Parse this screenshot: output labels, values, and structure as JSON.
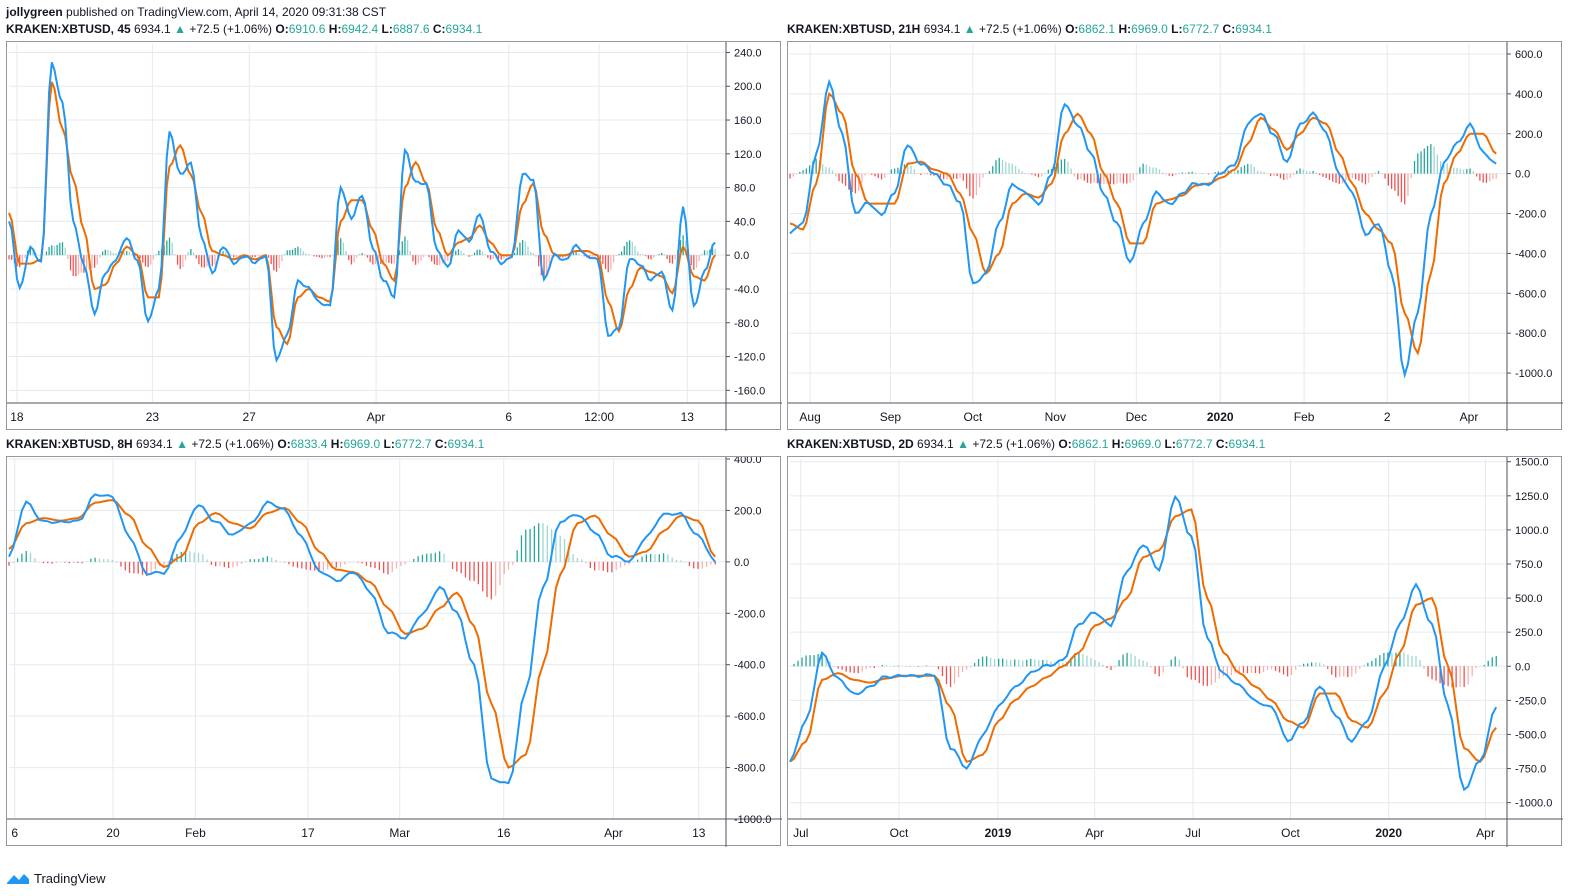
{
  "header": {
    "author": "jollygreen",
    "published_text": "published on TradingView.com, April 14, 2020 09:31:38 CST"
  },
  "colors": {
    "macd": "#2196f3",
    "signal": "#ef6c00",
    "hist_up": "#26a69a",
    "hist_down": "#ef5350",
    "grid": "#e6e9ef",
    "axis_text": "#131722"
  },
  "footer": {
    "brand": "TradingView",
    "icon": "tradingview-logo-icon"
  },
  "panels": [
    {
      "symbol": "KRAKEN:XBTUSD, 45",
      "price": "6934.1",
      "change": "+72.5 (+1.06%)",
      "o": "6910.6",
      "h": "6942.4",
      "l": "6887.6",
      "c": "6934.1"
    },
    {
      "symbol": "KRAKEN:XBTUSD, 21H",
      "price": "6934.1",
      "change": "+72.5 (+1.06%)",
      "o": "6862.1",
      "h": "6969.0",
      "l": "6772.7",
      "c": "6934.1"
    },
    {
      "symbol": "KRAKEN:XBTUSD, 8H",
      "price": "6934.1",
      "change": "+72.5 (+1.06%)",
      "o": "6833.4",
      "h": "6969.0",
      "l": "6772.7",
      "c": "6934.1"
    },
    {
      "symbol": "KRAKEN:XBTUSD, 2D",
      "price": "6934.1",
      "change": "+72.5 (+1.06%)",
      "o": "6862.1",
      "h": "6969.0",
      "l": "6772.7",
      "c": "6934.1"
    }
  ],
  "chart_data": [
    {
      "type": "line",
      "ylim": [
        -175,
        250
      ],
      "yticks": [
        "240.0",
        "200.0",
        "160.0",
        "120.0",
        "80.0",
        "40.0",
        "0.0",
        "-40.0",
        "-80.0",
        "-120.0",
        "-160.0"
      ],
      "ytick_values": [
        240,
        200,
        160,
        120,
        80,
        40,
        0,
        -40,
        -80,
        -120,
        -160
      ],
      "xticks": [
        "18",
        "23",
        "27",
        "Apr",
        "6",
        "12:00",
        "13"
      ],
      "xtick_positions": [
        0.011,
        0.2,
        0.335,
        0.512,
        0.697,
        0.823,
        0.946
      ],
      "series": [
        {
          "role": "macd",
          "values": [
            40,
            -40,
            10,
            -10,
            228,
            180,
            40,
            -10,
            -70,
            -20,
            -5,
            20,
            -5,
            -80,
            -40,
            145,
            95,
            110,
            20,
            -20,
            10,
            -10,
            0,
            -10,
            0,
            -125,
            -95,
            -30,
            -40,
            -55,
            -60,
            80,
            45,
            70,
            10,
            -30,
            -50,
            125,
            85,
            85,
            5,
            -15,
            30,
            15,
            50,
            5,
            -10,
            0,
            95,
            90,
            -30,
            0,
            -5,
            10,
            0,
            -5,
            -95,
            -85,
            -5,
            -10,
            -30,
            -20,
            -65,
            55,
            -60,
            -20,
            15
          ]
        },
        {
          "role": "signal",
          "values": [
            50,
            -10,
            -10,
            -5,
            205,
            150,
            90,
            30,
            -40,
            -35,
            -10,
            10,
            0,
            -50,
            -50,
            105,
            130,
            95,
            50,
            5,
            0,
            -5,
            0,
            -5,
            0,
            -85,
            -105,
            -50,
            -40,
            -50,
            -55,
            40,
            65,
            65,
            30,
            -10,
            -30,
            80,
            110,
            85,
            30,
            0,
            15,
            20,
            35,
            15,
            0,
            0,
            60,
            85,
            25,
            0,
            0,
            5,
            5,
            0,
            -55,
            -90,
            -40,
            -15,
            -20,
            -25,
            -45,
            10,
            -25,
            -30,
            0
          ]
        }
      ]
    },
    {
      "type": "line",
      "ylim": [
        -1150,
        650
      ],
      "yticks": [
        "600.0",
        "400.0",
        "200.0",
        "0.0",
        "-200.0",
        "-400.0",
        "-600.0",
        "-800.0",
        "-1000.0"
      ],
      "ytick_values": [
        600,
        400,
        200,
        0,
        -200,
        -400,
        -600,
        -800,
        -1000
      ],
      "xticks": [
        "Aug",
        "Sep",
        "Oct",
        "Nov",
        "Dec",
        "2020",
        "Feb",
        "2",
        "Apr"
      ],
      "xtick_positions": [
        0.028,
        0.14,
        0.255,
        0.37,
        0.483,
        0.6,
        0.717,
        0.833,
        0.947
      ],
      "series": [
        {
          "role": "macd",
          "values": [
            -300,
            -250,
            100,
            450,
            200,
            -200,
            -150,
            -200,
            -100,
            150,
            50,
            0,
            -50,
            -150,
            -550,
            -500,
            -250,
            -50,
            -100,
            -150,
            0,
            350,
            250,
            100,
            -100,
            -250,
            -450,
            -250,
            -100,
            -150,
            -100,
            -50,
            -50,
            0,
            50,
            250,
            300,
            200,
            50,
            250,
            300,
            200,
            0,
            -100,
            -300,
            -250,
            -500,
            -1000,
            -700,
            -200,
            50,
            150,
            250,
            100,
            50
          ]
        },
        {
          "role": "signal",
          "values": [
            -250,
            -280,
            -50,
            400,
            300,
            0,
            -150,
            -150,
            -150,
            50,
            60,
            20,
            0,
            -100,
            -300,
            -500,
            -400,
            -150,
            -100,
            -120,
            -50,
            200,
            300,
            200,
            0,
            -150,
            -350,
            -350,
            -150,
            -130,
            -110,
            -60,
            -50,
            -20,
            20,
            150,
            280,
            220,
            120,
            200,
            280,
            250,
            100,
            -50,
            -200,
            -280,
            -350,
            -700,
            -900,
            -500,
            -50,
            100,
            200,
            200,
            100
          ]
        }
      ]
    },
    {
      "type": "line",
      "ylim": [
        -1000,
        400
      ],
      "yticks": [
        "400.0",
        "200.0",
        "0.0",
        "-200.0",
        "-400.0",
        "-600.0",
        "-800.0",
        "-1000.0"
      ],
      "ytick_values": [
        400,
        200,
        0,
        -200,
        -400,
        -600,
        -800,
        -1000
      ],
      "xticks": [
        "6",
        "20",
        "Feb",
        "17",
        "Mar",
        "16",
        "Apr",
        "13"
      ],
      "xtick_positions": [
        0.008,
        0.145,
        0.26,
        0.417,
        0.545,
        0.69,
        0.843,
        0.962
      ],
      "series": [
        {
          "role": "macd",
          "values": [
            20,
            230,
            160,
            150,
            160,
            260,
            250,
            100,
            -50,
            -40,
            100,
            220,
            160,
            100,
            150,
            230,
            200,
            100,
            -40,
            -70,
            -40,
            -120,
            -270,
            -300,
            -200,
            -100,
            -200,
            -400,
            -850,
            -860,
            -500,
            -100,
            160,
            180,
            120,
            20,
            0,
            100,
            180,
            190,
            100,
            0
          ]
        },
        {
          "role": "signal",
          "values": [
            50,
            150,
            170,
            160,
            170,
            230,
            240,
            180,
            60,
            -20,
            20,
            150,
            190,
            150,
            130,
            190,
            210,
            150,
            40,
            -30,
            -40,
            -80,
            -180,
            -280,
            -260,
            -180,
            -120,
            -250,
            -550,
            -800,
            -750,
            -400,
            -50,
            150,
            180,
            100,
            20,
            40,
            120,
            180,
            160,
            20
          ]
        }
      ]
    },
    {
      "type": "line",
      "ylim": [
        -1120,
        1520
      ],
      "yticks": [
        "1500.0",
        "1250.0",
        "1000.0",
        "750.0",
        "500.0",
        "250.0",
        "0.0",
        "-250.0",
        "-500.0",
        "-750.0",
        "-1000.0"
      ],
      "ytick_values": [
        1500,
        1250,
        1000,
        750,
        500,
        250,
        0,
        -250,
        -500,
        -750,
        -1000
      ],
      "xticks": [
        "Jul",
        "Oct",
        "2019",
        "Apr",
        "Jul",
        "Oct",
        "2020",
        "Apr"
      ],
      "xtick_positions": [
        0.015,
        0.152,
        0.29,
        0.425,
        0.562,
        0.698,
        0.835,
        0.97
      ],
      "series": [
        {
          "role": "macd",
          "values": [
            -700,
            -400,
            100,
            -100,
            -200,
            -150,
            -80,
            -60,
            -80,
            -60,
            -600,
            -750,
            -500,
            -300,
            -150,
            -50,
            0,
            50,
            300,
            400,
            300,
            700,
            900,
            700,
            1250,
            950,
            200,
            -50,
            -150,
            -250,
            -300,
            -550,
            -400,
            -150,
            -350,
            -550,
            -400,
            0,
            300,
            600,
            300,
            -300,
            -900,
            -700,
            -300
          ]
        },
        {
          "role": "signal",
          "values": [
            -700,
            -550,
            -100,
            -50,
            -100,
            -120,
            -90,
            -70,
            -70,
            -70,
            -300,
            -700,
            -650,
            -400,
            -250,
            -150,
            -80,
            0,
            100,
            300,
            350,
            500,
            800,
            850,
            1100,
            1150,
            500,
            100,
            -50,
            -150,
            -250,
            -400,
            -450,
            -200,
            -200,
            -400,
            -450,
            -200,
            100,
            450,
            500,
            0,
            -600,
            -700,
            -450
          ]
        }
      ]
    }
  ]
}
